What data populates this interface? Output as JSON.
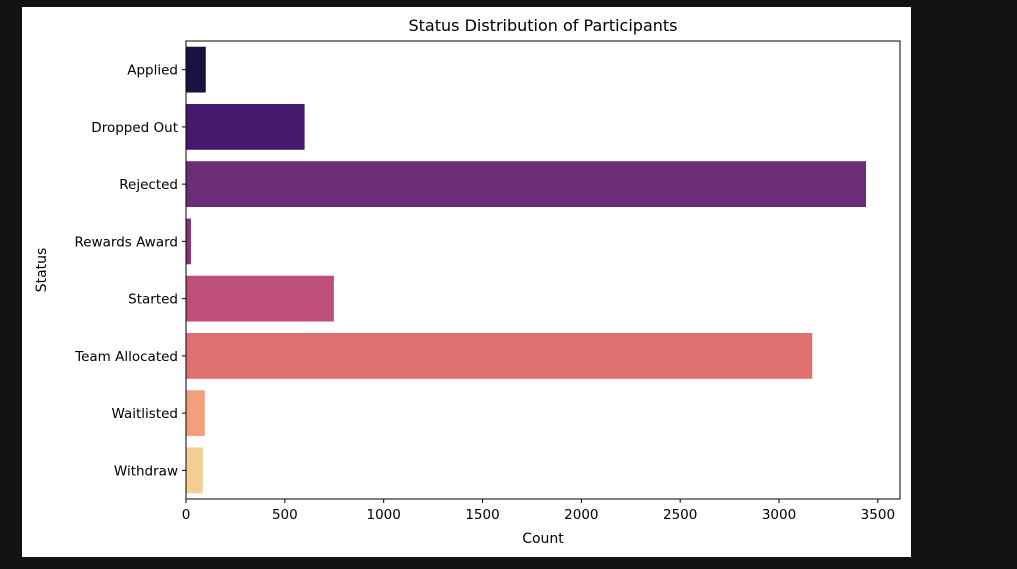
{
  "chart_data": {
    "type": "bar",
    "orientation": "horizontal",
    "title": "Status Distribution of Participants",
    "xlabel": "Count",
    "ylabel": "Status",
    "categories": [
      "Applied",
      "Dropped Out",
      "Rejected",
      "Rewards Award",
      "Started",
      "Team Allocated",
      "Waitlisted",
      "Withdraw"
    ],
    "values": [
      100,
      600,
      3440,
      25,
      748,
      3168,
      95,
      85
    ],
    "colors": [
      "#1a1042",
      "#451a6e",
      "#6b2d77",
      "#8c2f7a",
      "#bd4f78",
      "#de716f",
      "#f39f7c",
      "#f6cc95"
    ],
    "xticks": [
      0,
      500,
      1000,
      1500,
      2000,
      2500,
      3000,
      3500
    ],
    "xtick_labels": [
      "0",
      "500",
      "1000",
      "1500",
      "2000",
      "2500",
      "3000",
      "3500"
    ],
    "xlim": [
      0,
      3612
    ],
    "grid": false,
    "legend": "none"
  }
}
